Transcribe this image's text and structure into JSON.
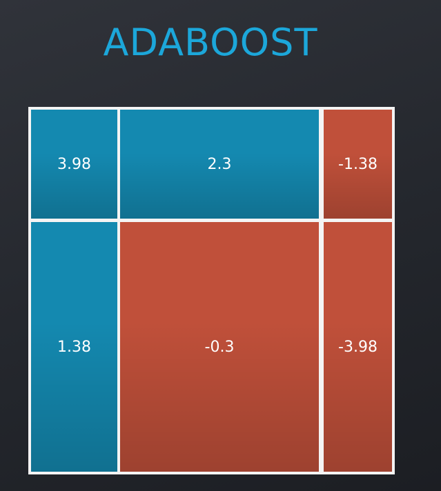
{
  "title": "ADABOOST",
  "colors": {
    "positive": "#1489b0",
    "negative": "#c0503a"
  },
  "cells": [
    [
      {
        "label": "3.98",
        "sign": "positive"
      },
      {
        "label": "2.3",
        "sign": "positive"
      },
      {
        "label": "-1.38",
        "sign": "negative"
      }
    ],
    [
      {
        "label": "1.38",
        "sign": "positive"
      },
      {
        "label": "-0.3",
        "sign": "negative"
      },
      {
        "label": "-3.98",
        "sign": "negative"
      }
    ]
  ]
}
